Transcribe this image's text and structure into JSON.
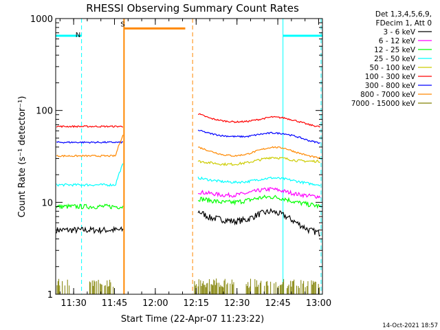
{
  "chart_data": {
    "type": "line",
    "title": "RHESSI Observing Summary Count Rates",
    "xlabel": "Start Time (22-Apr-07 11:23:22)",
    "ylabel": "Count Rate (s⁻¹ detector⁻¹)",
    "yscale": "log",
    "ylim": [
      1,
      1000
    ],
    "xlim_minutes": [
      0,
      98
    ],
    "yticks": [
      {
        "value": 1,
        "label": "1"
      },
      {
        "value": 10,
        "label": "10"
      },
      {
        "value": 100,
        "label": "100"
      },
      {
        "value": 1000,
        "label": "1000"
      }
    ],
    "xticks": [
      {
        "minute": 6.6,
        "label": "11:30"
      },
      {
        "minute": 21.6,
        "label": "11:45"
      },
      {
        "minute": 36.6,
        "label": "12:00"
      },
      {
        "minute": 51.6,
        "label": "12:15"
      },
      {
        "minute": 66.6,
        "label": "12:30"
      },
      {
        "minute": 81.6,
        "label": "12:45"
      },
      {
        "minute": 96.6,
        "label": "13:00"
      }
    ],
    "legend": {
      "header": [
        "Det 1,3,4,5,6,9,",
        "FDecim 1, Att 0"
      ],
      "position": "right"
    },
    "data_gap_minutes": [
      25.1,
      50.3
    ],
    "series": [
      {
        "name": "3 - 6 keV",
        "color": "#000000",
        "pre": 5.0,
        "post": [
          8,
          6.8,
          6.5,
          6.2,
          6.5,
          7.5,
          8,
          7.2,
          6,
          5,
          4.6
        ],
        "noise": 0.08
      },
      {
        "name": "6 - 12 keV",
        "color": "#ff00ff",
        "pre": null,
        "post": [
          13,
          12.5,
          12,
          12,
          12.6,
          13.5,
          14,
          13.2,
          12.3,
          11.8,
          11.5
        ],
        "noise": 0.05
      },
      {
        "name": "12 - 25 keV",
        "color": "#00ff00",
        "pre": 9.0,
        "post": [
          11,
          10.5,
          10,
          10,
          10.5,
          11.2,
          11.5,
          11,
          10,
          9.5,
          9
        ],
        "noise": 0.06
      },
      {
        "name": "25 - 50 keV",
        "color": "#00ffff",
        "pre": 15.5,
        "post": [
          18.5,
          17.5,
          16.8,
          16.5,
          16.8,
          17.8,
          18.5,
          18,
          17,
          16,
          15.5
        ],
        "noise": 0.03
      },
      {
        "name": "50 - 100 keV",
        "color": "#cccc00",
        "pre": null,
        "post": [
          28,
          27,
          26,
          26,
          27,
          29,
          31,
          30,
          28.5,
          28,
          28
        ],
        "noise": 0.03
      },
      {
        "name": "100 - 300 keV",
        "color": "#ff0000",
        "pre": 67,
        "post": [
          92,
          82,
          77,
          75,
          76,
          80,
          85,
          83,
          77,
          70,
          66
        ],
        "noise": 0.02
      },
      {
        "name": "300 - 800 keV",
        "color": "#0000ff",
        "pre": 45,
        "post": [
          61,
          56,
          53,
          52,
          52,
          55,
          57,
          56,
          52,
          47,
          44
        ],
        "noise": 0.02
      },
      {
        "name": "800 - 7000 keV",
        "color": "#ff8800",
        "pre": 32,
        "post": [
          40,
          36,
          33,
          32,
          33.5,
          37,
          40,
          39,
          35,
          32,
          30
        ],
        "noise": 0.02
      },
      {
        "name": "7000 - 15000 keV",
        "color": "#808000",
        "pre": 1.5,
        "post": [
          1.5
        ],
        "noise": 0.0
      }
    ],
    "annotations": [
      {
        "label": "N",
        "color": "#00ffff",
        "kind": "night"
      },
      {
        "label": "S",
        "color": "#ff8800",
        "kind": "saa"
      }
    ],
    "night_bars": [
      [
        0,
        9.5
      ],
      [
        83.5,
        98
      ]
    ],
    "night_lines_minutes": [
      9.5,
      83.5,
      97.5
    ],
    "saa_solid_minutes": 25.1,
    "saa_bar_minutes": [
      25.3,
      47.6
    ],
    "saa_dashed_minutes": 50.3,
    "saa_level": 780,
    "night_level": 650
  },
  "timestamp": "14-Oct-2021 18:57"
}
